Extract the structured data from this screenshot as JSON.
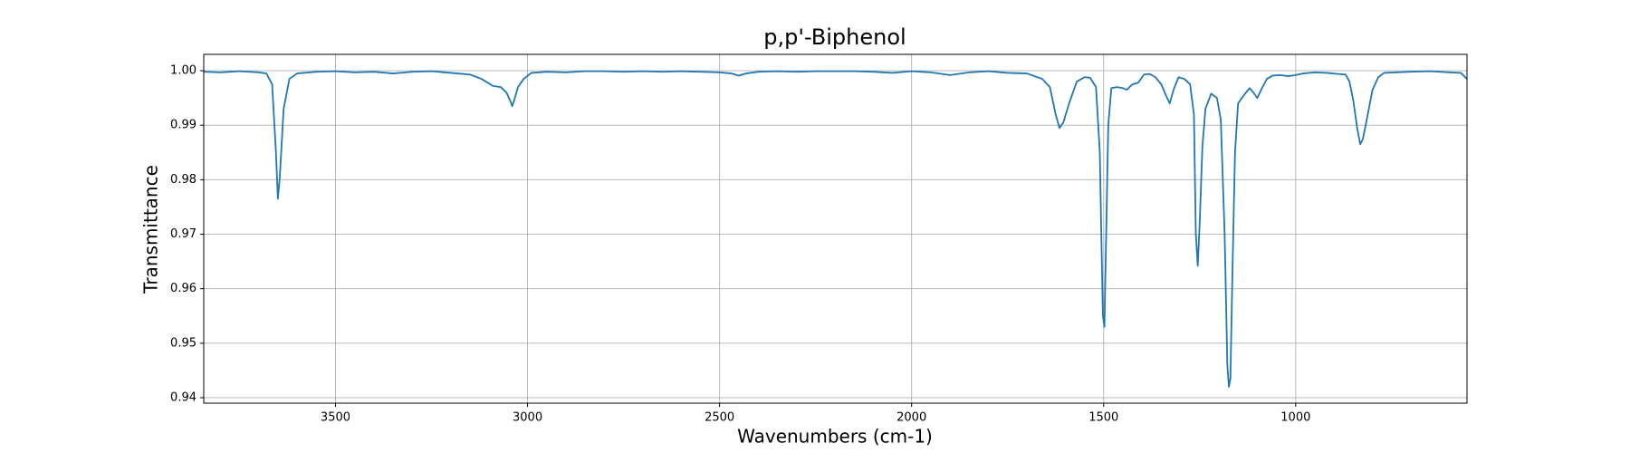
{
  "chart_data": {
    "type": "line",
    "title": "p,p'-Biphenol",
    "x_label": "Wavenumbers (cm-1)",
    "y_label": "Transmittance",
    "xlim": [
      3843,
      554
    ],
    "ylim": [
      0.939,
      1.003
    ],
    "xticks": [
      3500,
      3000,
      2500,
      2000,
      1500,
      1000
    ],
    "yticks": [
      0.94,
      0.95,
      0.96,
      0.97,
      0.98,
      0.99,
      {
        "value": 1,
        "label": "1.00"
      }
    ],
    "grid": true,
    "x": [
      3843,
      3800,
      3750,
      3700,
      3680,
      3665,
      3655,
      3650,
      3645,
      3635,
      3620,
      3600,
      3550,
      3500,
      3450,
      3400,
      3350,
      3300,
      3250,
      3200,
      3150,
      3120,
      3090,
      3070,
      3055,
      3045,
      3040,
      3035,
      3025,
      3010,
      2990,
      2950,
      2900,
      2850,
      2800,
      2750,
      2700,
      2650,
      2600,
      2550,
      2500,
      2470,
      2450,
      2430,
      2400,
      2350,
      2300,
      2250,
      2200,
      2150,
      2100,
      2050,
      2000,
      1950,
      1900,
      1850,
      1800,
      1750,
      1700,
      1660,
      1640,
      1625,
      1615,
      1605,
      1590,
      1570,
      1550,
      1535,
      1520,
      1510,
      1505,
      1502,
      1498,
      1494,
      1488,
      1480,
      1465,
      1450,
      1440,
      1425,
      1410,
      1395,
      1380,
      1365,
      1350,
      1338,
      1328,
      1318,
      1305,
      1290,
      1275,
      1265,
      1260,
      1255,
      1250,
      1243,
      1235,
      1220,
      1205,
      1195,
      1185,
      1178,
      1174,
      1170,
      1165,
      1158,
      1150,
      1135,
      1120,
      1110,
      1100,
      1090,
      1075,
      1060,
      1040,
      1020,
      1000,
      980,
      950,
      920,
      890,
      870,
      860,
      850,
      840,
      832,
      825,
      815,
      800,
      785,
      770,
      740,
      700,
      650,
      600,
      570,
      554
    ],
    "series": [
      {
        "color": "#1f77b4",
        "values": [
          0.9998,
          0.9997,
          0.9999,
          0.9997,
          0.9995,
          0.9975,
          0.985,
          0.9765,
          0.9805,
          0.993,
          0.9985,
          0.9995,
          0.9998,
          0.9999,
          0.9997,
          0.9998,
          0.9995,
          0.9998,
          0.9999,
          0.9996,
          0.9993,
          0.9985,
          0.9972,
          0.997,
          0.996,
          0.9945,
          0.9935,
          0.9945,
          0.997,
          0.9985,
          0.9996,
          0.9998,
          0.9997,
          0.9999,
          0.9999,
          0.9998,
          0.9999,
          0.9998,
          0.9999,
          0.9998,
          0.9997,
          0.9995,
          0.9991,
          0.9995,
          0.9998,
          0.9999,
          0.9998,
          0.9999,
          0.9999,
          0.9999,
          0.9998,
          0.9996,
          0.9999,
          0.9997,
          0.9992,
          0.9997,
          0.9999,
          0.9996,
          0.9995,
          0.9985,
          0.997,
          0.992,
          0.9895,
          0.9905,
          0.994,
          0.998,
          0.9988,
          0.9987,
          0.997,
          0.985,
          0.966,
          0.955,
          0.953,
          0.968,
          0.99,
          0.9968,
          0.997,
          0.9968,
          0.9965,
          0.9975,
          0.9978,
          0.9993,
          0.9994,
          0.9988,
          0.9975,
          0.9955,
          0.994,
          0.9965,
          0.9988,
          0.9985,
          0.9975,
          0.992,
          0.97,
          0.9642,
          0.972,
          0.986,
          0.993,
          0.9958,
          0.995,
          0.991,
          0.97,
          0.946,
          0.942,
          0.9435,
          0.962,
          0.985,
          0.994,
          0.9955,
          0.9968,
          0.996,
          0.995,
          0.9965,
          0.9985,
          0.9991,
          0.9992,
          0.999,
          0.9992,
          0.9995,
          0.9997,
          0.9996,
          0.9994,
          0.9993,
          0.998,
          0.9945,
          0.9895,
          0.9865,
          0.9875,
          0.991,
          0.9965,
          0.9988,
          0.9996,
          0.9997,
          0.9998,
          0.9999,
          0.9997,
          0.9996,
          0.9985
        ]
      }
    ]
  }
}
